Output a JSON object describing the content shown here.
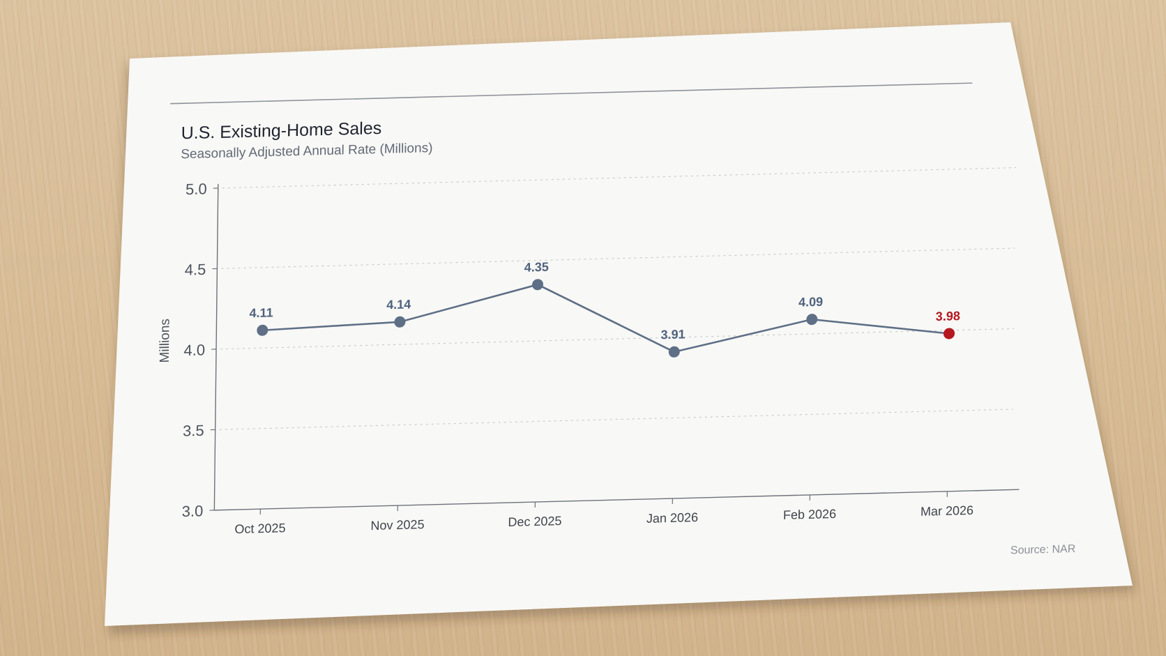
{
  "colors": {
    "series": "#5e6f86",
    "highlight": "#b5171f",
    "label": "#4f627d"
  },
  "chart_data": {
    "type": "line",
    "title": "U.S. Existing-Home Sales",
    "subtitle": "Seasonally Adjusted Annual Rate (Millions)",
    "xlabel": "",
    "ylabel": "Millions",
    "ylim": [
      3.0,
      5.0
    ],
    "yticks": [
      "3.0",
      "3.5",
      "4.0",
      "4.5",
      "5.0"
    ],
    "grid": true,
    "categories": [
      "Oct 2025",
      "Nov 2025",
      "Dec 2025",
      "Jan 2026",
      "Feb 2026",
      "Mar 2026"
    ],
    "values": [
      4.11,
      4.14,
      4.35,
      3.91,
      4.09,
      3.98
    ],
    "data_labels": [
      "4.11",
      "4.14",
      "4.35",
      "3.91",
      "4.09",
      "3.98"
    ],
    "highlight_index": 5,
    "source": "Source: NAR"
  }
}
